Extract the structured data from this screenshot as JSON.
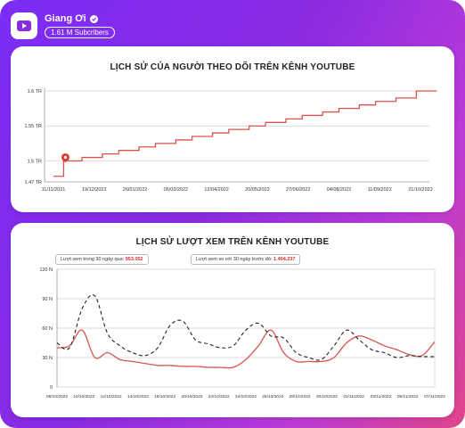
{
  "channel": {
    "name": "Giang Ơi",
    "subscribers": "1.61 M Subcribers"
  },
  "colors": {
    "accent_purple": "#8a2be2",
    "line_red": "#d9534f",
    "dash_black": "#222222"
  },
  "icons": {
    "logo": "play-icon",
    "verified": "check-badge-icon",
    "marker": "map-pin-icon"
  },
  "chart_data": [
    {
      "type": "line",
      "title": "LỊCH SỬ CỦA NGƯỜI THEO DÕI TRÊN KÊNH YOUTUBE",
      "y_ticks": [
        "1.6 TR",
        "1.55 TR",
        "1.5 TR",
        "1.47 TR"
      ],
      "y_tick_values": [
        1.6,
        1.55,
        1.5,
        1.47
      ],
      "ylim": [
        1.47,
        1.6
      ],
      "x_tick_labels": [
        "11/11/2021",
        "19/12/2022",
        "26/01/2022",
        "05/03/2022",
        "12/04/2022",
        "20/05/2022",
        "27/06/2022",
        "04/08/2022",
        "11/09/2022",
        "21/10/2022"
      ],
      "grid": true,
      "series": [
        {
          "x_index": [
            0,
            0.25,
            0.7,
            1.2,
            1.6,
            2.1,
            2.5,
            3.0,
            3.4,
            3.9,
            4.3,
            4.8,
            5.2,
            5.7,
            6.1,
            6.6,
            7.0,
            7.5,
            7.9,
            8.4,
            8.9,
            9.4
          ],
          "values": [
            1.478,
            1.5,
            1.505,
            1.51,
            1.515,
            1.52,
            1.525,
            1.53,
            1.535,
            1.54,
            1.545,
            1.55,
            1.555,
            1.56,
            1.565,
            1.57,
            1.575,
            1.58,
            1.585,
            1.59,
            1.6,
            1.6
          ]
        }
      ]
    },
    {
      "type": "line",
      "title": "LỊCH SỬ LƯỢT XEM TRÊN KÊNH YOUTUBE",
      "legend": [
        {
          "label": "Lượt xem trong 30 ngày qua:",
          "value": "953.052",
          "style": "solid-red"
        },
        {
          "label": "Lượt xem so với 30 ngày trước đó:",
          "value": "1.404.237",
          "style": "dashed-black"
        }
      ],
      "y_ticks": [
        "120 N",
        "90 N",
        "60 N",
        "30 N",
        "0"
      ],
      "y_tick_values": [
        120,
        90,
        60,
        30,
        0
      ],
      "ylim": [
        0,
        120
      ],
      "x_tick_labels": [
        "08/10/2022",
        "10/10/2022",
        "12/10/2022",
        "14/10/2022",
        "18/10/2022",
        "20/10/2022",
        "22/10/2022",
        "24/10/2022",
        "26/10/2022",
        "28/10/2022",
        "30/10/2022",
        "01/11/2022",
        "03/11/2022",
        "05/11/2022",
        "07/11/2022"
      ],
      "grid": true,
      "series": [
        {
          "style": "solid-red",
          "x": [
            0,
            1,
            2,
            3,
            4,
            5,
            6,
            7,
            8,
            9,
            10,
            11,
            12,
            13,
            14,
            15,
            16,
            17,
            18,
            19,
            20,
            21,
            22,
            23,
            24,
            25,
            26,
            27,
            28,
            29,
            30
          ],
          "values": [
            40,
            42,
            58,
            30,
            35,
            28,
            26,
            24,
            22,
            22,
            21,
            21,
            20,
            20,
            20,
            28,
            42,
            58,
            35,
            26,
            26,
            26,
            30,
            45,
            52,
            48,
            42,
            38,
            33,
            32,
            46
          ]
        },
        {
          "style": "dashed-black",
          "x": [
            0,
            1,
            2,
            3,
            4,
            5,
            6,
            7,
            8,
            9,
            10,
            11,
            12,
            13,
            14,
            15,
            16,
            17,
            18,
            19,
            20,
            21,
            22,
            23,
            24,
            25,
            26,
            27,
            28,
            29,
            30
          ],
          "values": [
            45,
            40,
            80,
            93,
            55,
            42,
            35,
            32,
            40,
            63,
            67,
            48,
            44,
            40,
            42,
            58,
            65,
            52,
            50,
            35,
            30,
            28,
            42,
            58,
            48,
            38,
            35,
            30,
            32,
            31,
            31
          ]
        }
      ]
    }
  ]
}
